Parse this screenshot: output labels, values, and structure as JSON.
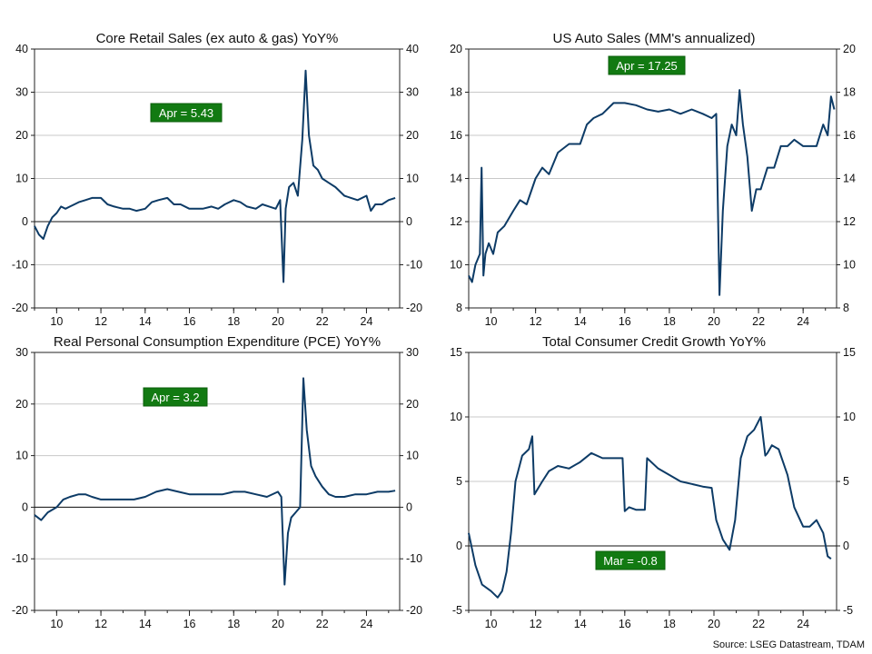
{
  "source": "Source: LSEG Datastream, TDAM",
  "colors": {
    "line": "#0d3b66",
    "label_box": "#127a12",
    "label_border": "#0a5d0a"
  },
  "chart_data": [
    {
      "type": "line",
      "title": "Core Retail Sales (ex auto & gas) YoY%",
      "xlim": [
        2009,
        2025.5
      ],
      "xticks": [
        10,
        12,
        14,
        16,
        18,
        20,
        22,
        24
      ],
      "ylim": [
        -20,
        40
      ],
      "yticks": [
        -20,
        -10,
        0,
        10,
        20,
        30,
        40
      ],
      "zero_line": true,
      "grid": true,
      "label": "Apr  = 5.43",
      "series": [
        {
          "x": [
            2009.0,
            2009.2,
            2009.4,
            2009.6,
            2009.8,
            2010.0,
            2010.2,
            2010.4,
            2010.6,
            2010.8,
            2011.0,
            2011.3,
            2011.6,
            2012.0,
            2012.3,
            2012.6,
            2013.0,
            2013.3,
            2013.6,
            2014.0,
            2014.3,
            2014.6,
            2015.0,
            2015.3,
            2015.6,
            2016.0,
            2016.3,
            2016.6,
            2017.0,
            2017.3,
            2017.6,
            2018.0,
            2018.3,
            2018.6,
            2019.0,
            2019.3,
            2019.6,
            2019.9,
            2020.1,
            2020.25,
            2020.35,
            2020.5,
            2020.7,
            2020.9,
            2021.1,
            2021.25,
            2021.4,
            2021.6,
            2021.8,
            2022.0,
            2022.3,
            2022.6,
            2023.0,
            2023.3,
            2023.6,
            2024.0,
            2024.2,
            2024.4,
            2024.7,
            2025.0,
            2025.3
          ],
          "y": [
            -1,
            -3,
            -4,
            -1,
            1,
            2,
            3.5,
            3,
            3.5,
            4,
            4.5,
            5,
            5.5,
            5.5,
            4,
            3.5,
            3,
            3,
            2.5,
            3,
            4.5,
            5,
            5.5,
            4,
            4,
            3,
            3,
            3,
            3.5,
            3,
            4,
            5,
            4.5,
            3.5,
            3,
            4,
            3.5,
            3,
            5,
            -14,
            3,
            8,
            9,
            6,
            19,
            35,
            20,
            13,
            12,
            10,
            9,
            8,
            6,
            5.5,
            5,
            6,
            2.5,
            4,
            4,
            5,
            5.5
          ]
        }
      ]
    },
    {
      "type": "line",
      "title": "US Auto Sales (MM's annualized)",
      "xlim": [
        2009,
        2025.5
      ],
      "xticks": [
        10,
        12,
        14,
        16,
        18,
        20,
        22,
        24
      ],
      "ylim": [
        8,
        20
      ],
      "yticks": [
        8,
        10,
        12,
        14,
        16,
        18,
        20
      ],
      "zero_line": false,
      "grid": true,
      "label": "Apr  = 17.25",
      "series": [
        {
          "x": [
            2009.0,
            2009.15,
            2009.3,
            2009.5,
            2009.58,
            2009.66,
            2009.75,
            2009.9,
            2010.1,
            2010.3,
            2010.6,
            2011.0,
            2011.3,
            2011.6,
            2012.0,
            2012.3,
            2012.6,
            2013.0,
            2013.5,
            2014.0,
            2014.3,
            2014.6,
            2015.0,
            2015.5,
            2016.0,
            2016.5,
            2017.0,
            2017.5,
            2018.0,
            2018.5,
            2019.0,
            2019.5,
            2019.9,
            2020.1,
            2020.25,
            2020.4,
            2020.6,
            2020.8,
            2021.0,
            2021.15,
            2021.3,
            2021.5,
            2021.7,
            2021.9,
            2022.1,
            2022.4,
            2022.7,
            2023.0,
            2023.3,
            2023.6,
            2024.0,
            2024.3,
            2024.6,
            2024.9,
            2025.1,
            2025.25,
            2025.4
          ],
          "y": [
            9.5,
            9.2,
            10,
            10.5,
            14.5,
            9.5,
            10.5,
            11,
            10.5,
            11.5,
            11.8,
            12.5,
            13,
            12.8,
            14,
            14.5,
            14.2,
            15.2,
            15.6,
            15.6,
            16.5,
            16.8,
            17,
            17.5,
            17.5,
            17.4,
            17.2,
            17.1,
            17.2,
            17,
            17.2,
            17,
            16.8,
            17,
            8.6,
            12.5,
            15.5,
            16.5,
            16,
            18.1,
            16.5,
            15,
            12.5,
            13.5,
            13.5,
            14.5,
            14.5,
            15.5,
            15.5,
            15.8,
            15.5,
            15.5,
            15.5,
            16.5,
            16,
            17.8,
            17.2
          ]
        }
      ]
    },
    {
      "type": "line",
      "title": "Real Personal Consumption Expenditure (PCE) YoY%",
      "xlim": [
        2009,
        2025.5
      ],
      "xticks": [
        10,
        12,
        14,
        16,
        18,
        20,
        22,
        24
      ],
      "ylim": [
        -20,
        30
      ],
      "yticks": [
        -20,
        -10,
        0,
        10,
        20,
        30
      ],
      "zero_line": true,
      "grid": true,
      "label": "Apr  = 3.2",
      "series": [
        {
          "x": [
            2009.0,
            2009.3,
            2009.6,
            2010.0,
            2010.3,
            2010.6,
            2011.0,
            2011.3,
            2011.6,
            2012.0,
            2012.5,
            2013.0,
            2013.5,
            2014.0,
            2014.5,
            2015.0,
            2015.5,
            2016.0,
            2016.5,
            2017.0,
            2017.5,
            2018.0,
            2018.5,
            2019.0,
            2019.5,
            2020.0,
            2020.15,
            2020.3,
            2020.45,
            2020.6,
            2020.8,
            2021.0,
            2021.15,
            2021.3,
            2021.5,
            2021.7,
            2022.0,
            2022.3,
            2022.6,
            2023.0,
            2023.5,
            2024.0,
            2024.5,
            2025.0,
            2025.3
          ],
          "y": [
            -1.5,
            -2.5,
            -1,
            0,
            1.5,
            2,
            2.5,
            2.5,
            2,
            1.5,
            1.5,
            1.5,
            1.5,
            2,
            3,
            3.5,
            3,
            2.5,
            2.5,
            2.5,
            2.5,
            3,
            3,
            2.5,
            2,
            3,
            2,
            -15,
            -5,
            -2,
            -1,
            0,
            25,
            15,
            8,
            6,
            4,
            2.5,
            2,
            2,
            2.5,
            2.5,
            3,
            3,
            3.2
          ]
        }
      ]
    },
    {
      "type": "line",
      "title": "Total Consumer Credit Growth YoY%",
      "xlim": [
        2009,
        2025.5
      ],
      "xticks": [
        10,
        12,
        14,
        16,
        18,
        20,
        22,
        24
      ],
      "ylim": [
        -5,
        15
      ],
      "yticks": [
        -5,
        0,
        5,
        10,
        15
      ],
      "zero_line": true,
      "grid": true,
      "label": "Mar  = -0.8",
      "series": [
        {
          "x": [
            2009.0,
            2009.3,
            2009.6,
            2010.0,
            2010.3,
            2010.5,
            2010.7,
            2010.9,
            2011.1,
            2011.4,
            2011.7,
            2011.85,
            2011.95,
            2012.3,
            2012.6,
            2013.0,
            2013.5,
            2014.0,
            2014.5,
            2015.0,
            2015.5,
            2015.9,
            2016.0,
            2016.2,
            2016.5,
            2016.9,
            2017.0,
            2017.5,
            2018.0,
            2018.5,
            2019.0,
            2019.5,
            2019.9,
            2020.1,
            2020.4,
            2020.7,
            2020.95,
            2021.2,
            2021.5,
            2021.8,
            2022.1,
            2022.3,
            2022.4,
            2022.6,
            2022.9,
            2023.3,
            2023.6,
            2024.0,
            2024.3,
            2024.6,
            2024.9,
            2025.1,
            2025.25
          ],
          "y": [
            1,
            -1.5,
            -3,
            -3.5,
            -4,
            -3.5,
            -2,
            1,
            5,
            7,
            7.5,
            8.5,
            4,
            5,
            5.8,
            6.2,
            6,
            6.5,
            7.2,
            6.8,
            6.8,
            6.8,
            2.7,
            3,
            2.8,
            2.8,
            6.8,
            6,
            5.5,
            5,
            4.8,
            4.6,
            4.5,
            2,
            0.5,
            -0.3,
            2,
            6.8,
            8.5,
            9,
            10,
            7,
            7.2,
            7.8,
            7.5,
            5.5,
            3,
            1.5,
            1.5,
            2,
            1,
            -0.8,
            -1
          ]
        }
      ]
    }
  ]
}
